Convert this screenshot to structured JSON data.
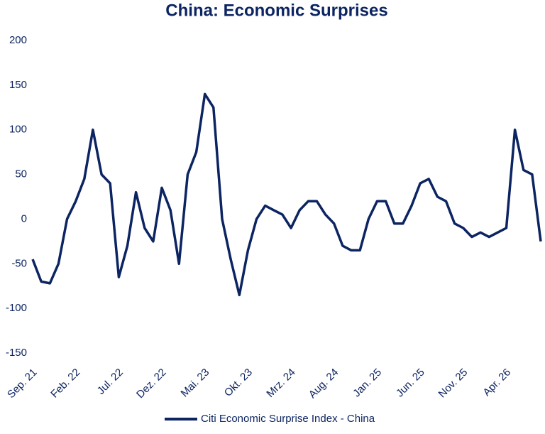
{
  "chart_data": {
    "type": "line",
    "title": "China: Economic Surprises",
    "x": [
      "2021-09",
      "2021-10",
      "2021-11",
      "2021-12",
      "2022-01",
      "2022-02",
      "2022-03",
      "2022-04",
      "2022-05",
      "2022-06",
      "2022-07",
      "2022-08",
      "2022-09",
      "2022-10",
      "2022-11",
      "2022-12",
      "2023-01",
      "2023-02",
      "2023-03",
      "2023-04",
      "2023-05",
      "2023-06",
      "2023-07",
      "2023-08",
      "2023-09",
      "2023-10",
      "2023-11",
      "2023-12",
      "2024-01",
      "2024-02",
      "2024-03",
      "2024-04",
      "2024-05",
      "2024-06",
      "2024-07",
      "2024-08",
      "2024-09",
      "2024-10",
      "2024-11",
      "2024-12",
      "2025-01",
      "2025-02",
      "2025-03",
      "2025-04",
      "2025-05",
      "2025-06",
      "2025-07",
      "2025-08",
      "2025-09",
      "2025-10",
      "2025-11",
      "2025-12",
      "2026-01",
      "2026-02",
      "2026-03",
      "2026-04",
      "2026-05",
      "2026-06",
      "2026-07",
      "2026-08"
    ],
    "series": [
      {
        "name": "Citi Economic Surprise Index - China",
        "color": "#0c2461",
        "values": [
          -45,
          -70,
          -72,
          -50,
          0,
          20,
          45,
          100,
          50,
          40,
          -65,
          -30,
          30,
          -10,
          -25,
          35,
          10,
          -50,
          50,
          75,
          140,
          125,
          0,
          -45,
          -85,
          -35,
          0,
          15,
          10,
          5,
          -10,
          10,
          20,
          20,
          5,
          -5,
          -30,
          -35,
          -35,
          0,
          20,
          20,
          -5,
          -5,
          15,
          40,
          45,
          25,
          20,
          -5,
          -10,
          -20,
          -15,
          -20,
          -15,
          -10,
          100,
          55,
          50,
          -25
        ]
      }
    ],
    "xlim": [
      "2021-09",
      "2026-08"
    ],
    "xticks": [
      {
        "value": "2021-09",
        "label": "Sep. 21"
      },
      {
        "value": "2022-02",
        "label": "Feb. 22"
      },
      {
        "value": "2022-07",
        "label": "Jul. 22"
      },
      {
        "value": "2022-12",
        "label": "Dez. 22"
      },
      {
        "value": "2023-05",
        "label": "Mai. 23"
      },
      {
        "value": "2023-10",
        "label": "Okt. 23"
      },
      {
        "value": "2024-03",
        "label": "Mrz. 24"
      },
      {
        "value": "2024-08",
        "label": "Aug. 24"
      },
      {
        "value": "2025-01",
        "label": "Jan. 25"
      },
      {
        "value": "2025-06",
        "label": "Jun. 25"
      },
      {
        "value": "2025-11",
        "label": "Nov. 25"
      },
      {
        "value": "2026-04",
        "label": "Apr. 26"
      }
    ],
    "ylim": [
      -150,
      200
    ],
    "yticks": [
      -150,
      -100,
      -50,
      0,
      50,
      100,
      150,
      200
    ],
    "grid": false
  }
}
